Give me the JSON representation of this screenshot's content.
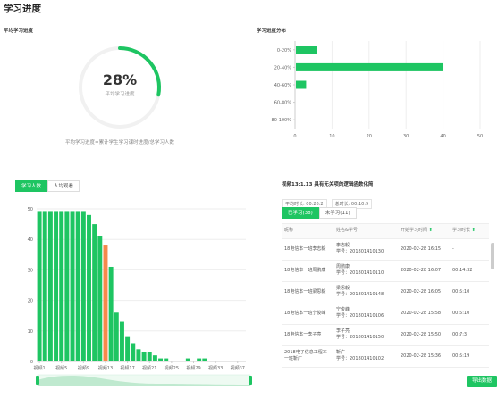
{
  "page": {
    "title": "学习进度"
  },
  "avg": {
    "heading": "平均学习进度",
    "value": "28%",
    "label": "平均学习进度",
    "percent": 28,
    "footnote": "平均学习进度=累计学生学习课时进度/总学习人数"
  },
  "dist": {
    "heading": "学习进度分布",
    "chart_data": {
      "type": "bar",
      "orientation": "horizontal",
      "categories": [
        "0-20%",
        "20-40%",
        "40-60%",
        "60-80%",
        "80-100%"
      ],
      "values": [
        6,
        40,
        3,
        0,
        0
      ],
      "xlim": [
        0,
        50
      ],
      "xticks": [
        0,
        10,
        20,
        30,
        40,
        50
      ],
      "grid": true,
      "color": "#1ec562"
    }
  },
  "learners": {
    "tabs": [
      {
        "label": "学习人数",
        "active": true
      },
      {
        "label": "人均观看",
        "active": false
      }
    ],
    "chart_data": {
      "type": "bar",
      "categories": [
        "视频1",
        "视频2",
        "视频3",
        "视频4",
        "视频5",
        "视频6",
        "视频7",
        "视频8",
        "视频9",
        "视频10",
        "视频11",
        "视频12",
        "视频13",
        "视频14",
        "视频15",
        "视频16",
        "视频17",
        "视频18",
        "视频19",
        "视频20",
        "视频21",
        "视频22",
        "视频23",
        "视频24",
        "视频25",
        "视频26",
        "视频27",
        "视频28",
        "视频29",
        "视频30",
        "视频31",
        "视频32",
        "视频33",
        "视频34",
        "视频35",
        "视频36",
        "视频37",
        "视频38"
      ],
      "values": [
        49,
        49,
        49,
        49,
        49,
        49,
        49,
        49,
        49,
        48,
        45,
        41,
        38,
        31,
        16,
        13,
        8,
        6,
        4,
        3,
        3,
        2,
        1,
        1,
        0,
        0,
        0,
        1,
        0,
        1,
        1,
        0,
        0,
        0,
        0,
        0,
        0,
        0
      ],
      "xtick_labels": [
        "视频1",
        "视频5",
        "视频9",
        "视频13",
        "视频17",
        "视频21",
        "视频25",
        "视频29",
        "视频33",
        "视频37"
      ],
      "ylim": [
        0,
        50
      ],
      "yticks": [
        0,
        10,
        20,
        30,
        40,
        50
      ],
      "highlight_index": 12,
      "colors": {
        "bar": "#1ec562",
        "highlight": "#f5894b"
      },
      "grid": true,
      "has_zoom_slider": true
    }
  },
  "detail": {
    "title": "视频13:1.13 具有无关项的逻辑函数化简",
    "avg_time": "平均时长: 00:26:2",
    "total_time": "总时长: 00:10:9",
    "tabs": [
      {
        "label": "已学习(38)",
        "active": true
      },
      {
        "label": "未学习(11)",
        "active": false
      }
    ],
    "columns": [
      "昵称",
      "姓名&学号",
      "开始学习时间",
      "学习时长"
    ],
    "rows": [
      {
        "nick": "18电信本一班李志毅",
        "name": "李志毅",
        "sid": "学号：201801410130",
        "start": "2020-02-28 16:15",
        "dur": "-"
      },
      {
        "nick": "18电信本一班周鹏康",
        "name": "周鹏康",
        "sid": "学号：201801410110",
        "start": "2020-02-28 16:07",
        "dur": "00:14:32"
      },
      {
        "nick": "18电信本一班梁思毅",
        "name": "梁思毅",
        "sid": "学号：201801410148",
        "start": "2020-02-28 16:05",
        "dur": "00:5:10"
      },
      {
        "nick": "18电信本一班宁俊峰",
        "name": "宁俊峰",
        "sid": "学号：201801410106",
        "start": "2020-02-28 15:58",
        "dur": "00:5:10"
      },
      {
        "nick": "18电信本一李子亮",
        "name": "李子亮",
        "sid": "学号：201801410150",
        "start": "2020-02-28 15:50",
        "dur": "00:7:3"
      },
      {
        "nick": "2018电子信息工程本一班靳广",
        "name": "靳广",
        "sid": "学号：201801410102",
        "start": "2020-02-28 15:36",
        "dur": "00:5:19"
      }
    ],
    "export_label": "导出数据"
  }
}
